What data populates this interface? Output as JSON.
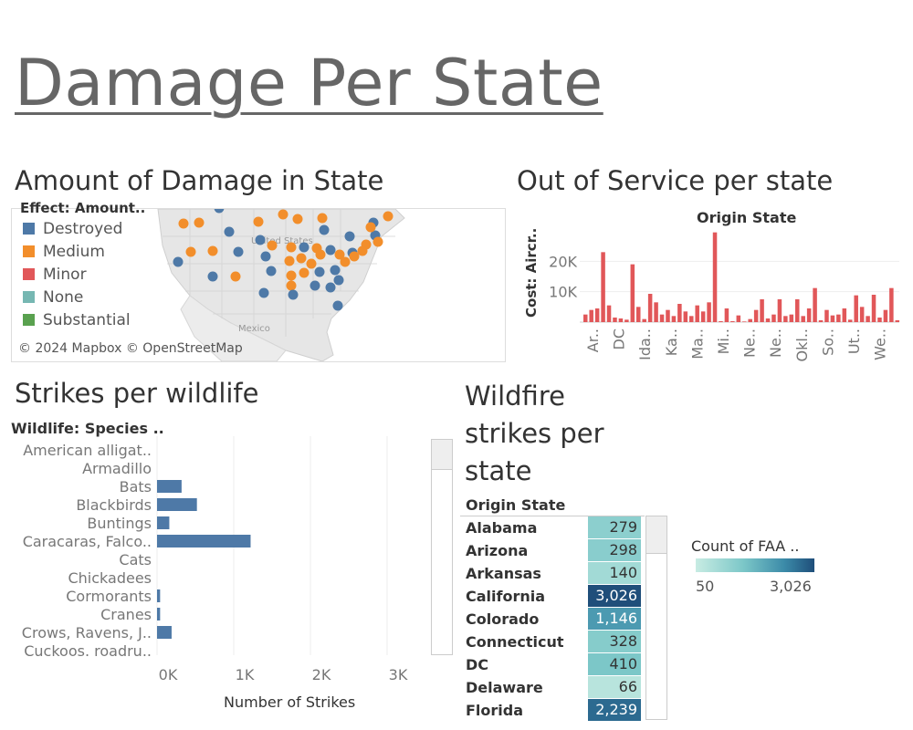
{
  "page": {
    "title": "Damage Per State"
  },
  "map_panel": {
    "title": "Amount of Damage in State",
    "legend_title": "Effect: Amount..",
    "legend": [
      {
        "label": "Destroyed",
        "color": "#4e79a7"
      },
      {
        "label": "Medium",
        "color": "#f28e2b"
      },
      {
        "label": "Minor",
        "color": "#e15759"
      },
      {
        "label": "None",
        "color": "#76b7b2"
      },
      {
        "label": "Substantial",
        "color": "#59a14f"
      }
    ],
    "map_labels": {
      "country": "United States",
      "neighbor": "Mexico"
    },
    "attribution": "© 2024 Mapbox © OpenStreetMap"
  },
  "out_of_service": {
    "title": "Out of Service per state",
    "header": "Origin State",
    "y_axis_title": "Cost: Aircr..",
    "bar_color": "#e15759"
  },
  "wildlife": {
    "title": "Strikes per wildlife",
    "header": "Wildlife: Species ..",
    "x_axis_title": "Number of Strikes",
    "bar_color": "#4e79a7"
  },
  "wildfire": {
    "title_lines": [
      "Wildfire",
      "strikes per",
      "state"
    ],
    "header": "Origin State",
    "legend_title": "Count of FAA ..",
    "legend_min": "50",
    "legend_max": "3,026"
  },
  "chart_data": [
    {
      "type": "bar",
      "title": "Out of Service per state",
      "xlabel": "Origin State",
      "ylabel": "Cost: Aircr..",
      "tick_labels": [
        "Ar..",
        "DC",
        "Ida..",
        "Ka..",
        "Ma..",
        "Mi..",
        "Ne..",
        "Ne..",
        "Okl..",
        "So..",
        "Ut..",
        "We.."
      ],
      "yticks": [
        "10K",
        "20K"
      ],
      "ylim": [
        0,
        30000
      ],
      "values": [
        2500,
        4000,
        4500,
        23000,
        5500,
        1500,
        1200,
        800,
        19000,
        5000,
        1000,
        9300,
        6500,
        2500,
        4000,
        2000,
        6000,
        3500,
        2000,
        5500,
        3500,
        6500,
        29500,
        300,
        4500,
        300,
        2200,
        200,
        1000,
        4000,
        7500,
        1200,
        2500,
        7500,
        2000,
        2500,
        7500,
        2000,
        4500,
        11200,
        600,
        4000,
        2200,
        2500,
        4500,
        800,
        8800,
        5000,
        2000,
        9000,
        1500,
        4000,
        11200,
        600
      ],
      "grid": true
    },
    {
      "type": "bar",
      "orientation": "horizontal",
      "title": "Strikes per wildlife",
      "xlabel": "Number of Strikes",
      "ylabel": "Wildlife: Species ..",
      "categories": [
        "American alligat..",
        "Armadillo",
        "Bats",
        "Blackbirds",
        "Buntings",
        "Caracaras, Falco..",
        "Cats",
        "Chickadees",
        "Cormorants",
        "Cranes",
        "Crows, Ravens, J..",
        "Cuckoos. roadru.."
      ],
      "values": [
        0,
        0,
        320,
        520,
        160,
        1220,
        0,
        0,
        40,
        40,
        190,
        0
      ],
      "xticks": [
        "0K",
        "1K",
        "2K",
        "3K"
      ],
      "xlim": [
        0,
        3000
      ],
      "grid": true
    },
    {
      "type": "heatmap",
      "title": "Wildfire strikes per state",
      "header": "Origin State",
      "categories": [
        "Alabama",
        "Arizona",
        "Arkansas",
        "California",
        "Colorado",
        "Connecticut",
        "DC",
        "Delaware",
        "Florida"
      ],
      "values": [
        279,
        298,
        140,
        3026,
        1146,
        328,
        410,
        66,
        2239
      ],
      "labels": [
        "279",
        "298",
        "140",
        "3,026",
        "1,146",
        "328",
        "410",
        "66",
        "2,239"
      ],
      "color_range": [
        50,
        3026
      ]
    }
  ]
}
